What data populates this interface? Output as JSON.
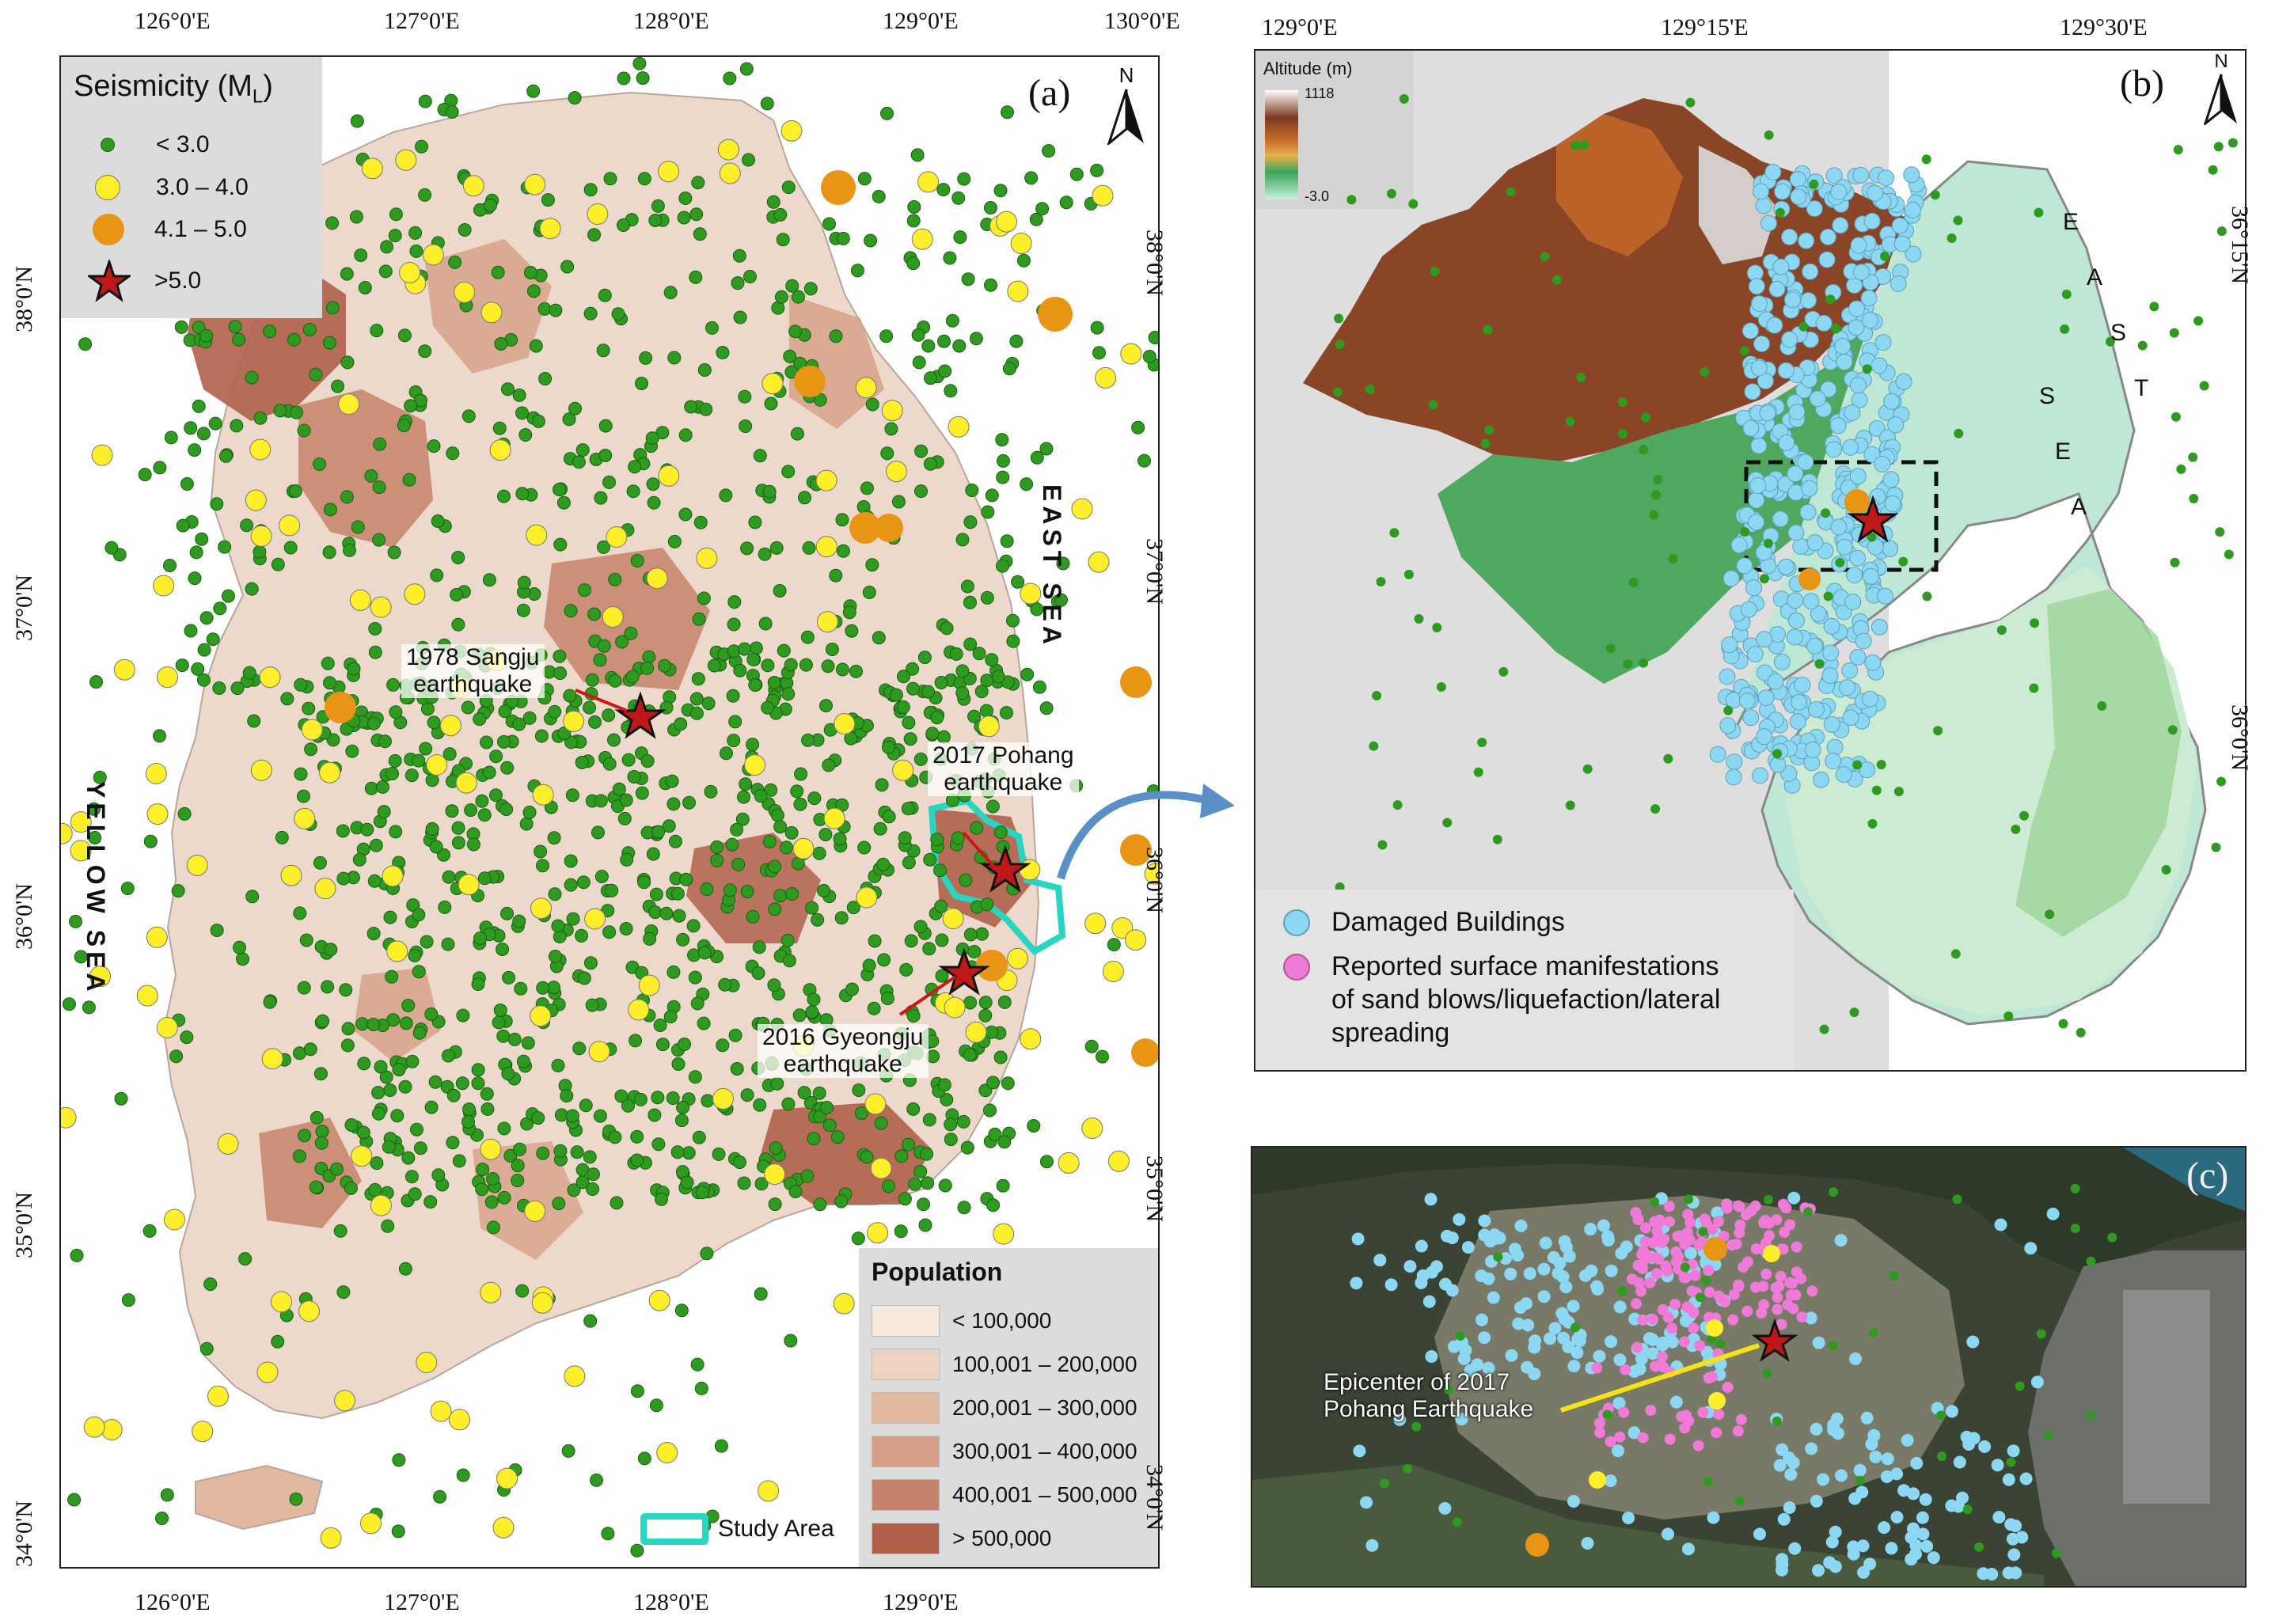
{
  "panel_a": {
    "label": "(a)",
    "north": "N",
    "top_ticks": [
      "126°0'E",
      "127°0'E",
      "128°0'E",
      "129°0'E",
      "130°0'E"
    ],
    "bottom_ticks": [
      "126°0'E",
      "127°0'E",
      "128°0'E",
      "129°0'E"
    ],
    "left_ticks": [
      "38°0'N",
      "37°0'N",
      "36°0'N",
      "35°0'N",
      "34°0'N"
    ],
    "right_ticks": [
      "38°0'N",
      "37°0'N",
      "36°0'N",
      "35°0'N",
      "34°0'N"
    ],
    "seismicity_legend": {
      "title": "Seismicity (M",
      "title_sub": "L",
      "title_close": ")",
      "items": [
        "< 3.0",
        "3.0 – 4.0",
        "4.1 – 5.0",
        ">5.0"
      ]
    },
    "population_legend": {
      "title": "Population",
      "items": [
        "< 100,000",
        "100,001 – 200,000",
        "200,001 – 300,000",
        "300,001 – 400,000",
        "400,001 – 500,000",
        "> 500,000"
      ],
      "colors": [
        "#f7e8dd",
        "#eed3c3",
        "#e3b8a0",
        "#d69e84",
        "#c7826a",
        "#b0604b"
      ]
    },
    "study_area_label": "Study Area",
    "east_sea": "EAST SEA",
    "yellow_sea": "YELLOW SEA",
    "annotations": {
      "sangju_1": "1978 Sangju",
      "sangju_2": "earthquake",
      "pohang_1": "2017 Pohang",
      "pohang_2": "earthquake",
      "gyeongju_1": "2016 Gyeongju",
      "gyeongju_2": "earthquake"
    },
    "colors": {
      "small_quake": "#2e9a1f",
      "medium_quake": "#ffee2a",
      "large_quake": "#e89516",
      "star": "#c01818",
      "study_area": "#27d6c1"
    }
  },
  "panel_b": {
    "label": "(b)",
    "north": "N",
    "top_ticks": [
      "129°0'E",
      "129°15'E",
      "129°30'E"
    ],
    "right_ticks": [
      "36°15'N",
      "36°0'N"
    ],
    "altitude_title": "Altitude (m)",
    "altitude_max": "1118",
    "altitude_min": "-3.0",
    "east_sea_letters": [
      "E",
      "A",
      "S",
      "T",
      "S",
      "E",
      "A"
    ],
    "legend": {
      "damaged": "Damaged Buildings",
      "reported_1": "Reported surface manifestations",
      "reported_2": "of sand blows/liquefaction/lateral",
      "reported_3": "spreading"
    },
    "colors": {
      "damaged": "#8cd8f2",
      "reported": "#f07ad8"
    }
  },
  "panel_c": {
    "label": "(c)",
    "epicenter_1": "Epicenter of 2017",
    "epicenter_2": "Pohang Earthquake"
  }
}
